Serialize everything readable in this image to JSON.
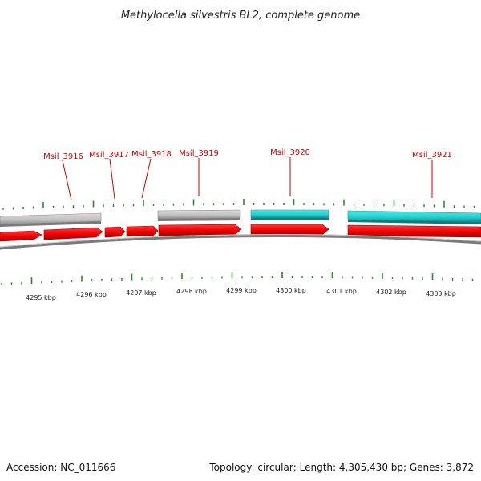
{
  "title": "Methylocella silvestris BL2, complete genome",
  "footer": {
    "accession": "Accession: NC_011666",
    "summary": "Topology: circular; Length: 4,305,430 bp; Genes: 3,872"
  },
  "colors": {
    "cds": "#ee0000",
    "highlight": "#22cccc",
    "other_feature": "#c0c0c0",
    "backbone": "#8a8a8a",
    "tick": "#2a8a2a",
    "label": "#cc0000"
  },
  "genes": [
    {
      "label": "Msil_3916"
    },
    {
      "label": "Msil_3917"
    },
    {
      "label": "Msil_3918"
    },
    {
      "label": "Msil_3919"
    },
    {
      "label": "Msil_3920"
    },
    {
      "label": "Msil_3921"
    }
  ],
  "kbp_labels": [
    "4295 kbp",
    "4296 kbp",
    "4297 kbp",
    "4298 kbp",
    "4299 kbp",
    "4300 kbp",
    "4301 kbp",
    "4302 kbp",
    "4303 kbp"
  ]
}
